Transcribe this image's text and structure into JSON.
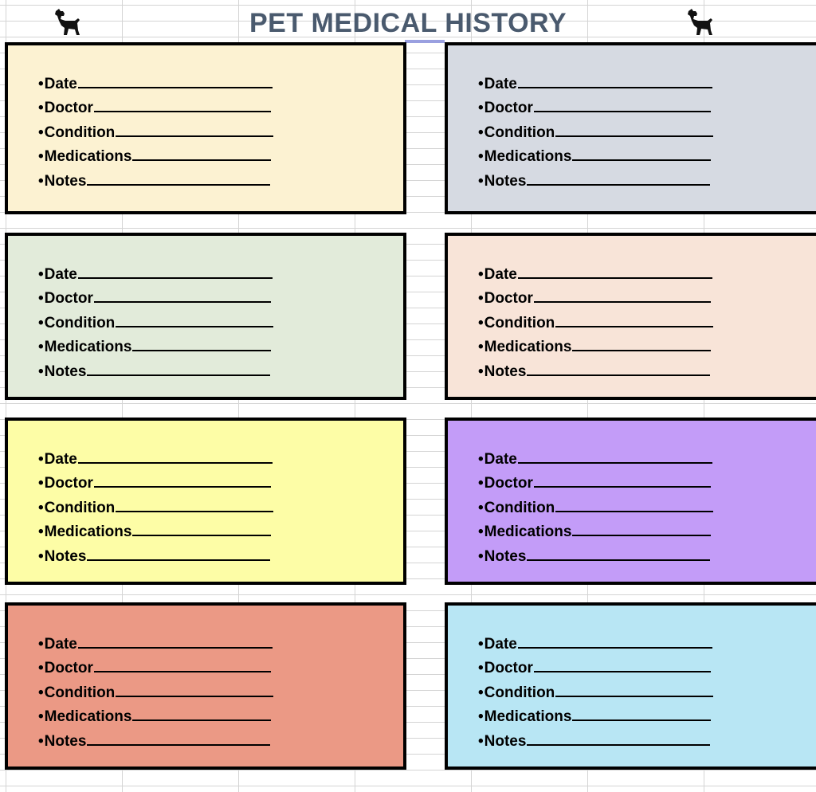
{
  "page": {
    "title": "PET MEDICAL HISTORY",
    "icons": [
      "dog-silhouette-icon",
      "dog-silhouette-icon"
    ]
  },
  "fields": [
    "Date",
    "Doctor",
    "Condition",
    "Medications",
    "Notes"
  ],
  "bullet": "•",
  "cards": [
    {
      "color": "#fcf2d2"
    },
    {
      "color": "#d6dae2"
    },
    {
      "color": "#e2ebda"
    },
    {
      "color": "#f8e4d8"
    },
    {
      "color": "#fdfda6"
    },
    {
      "color": "#c39cf8"
    },
    {
      "color": "#eb9985"
    },
    {
      "color": "#b8e6f4"
    }
  ]
}
